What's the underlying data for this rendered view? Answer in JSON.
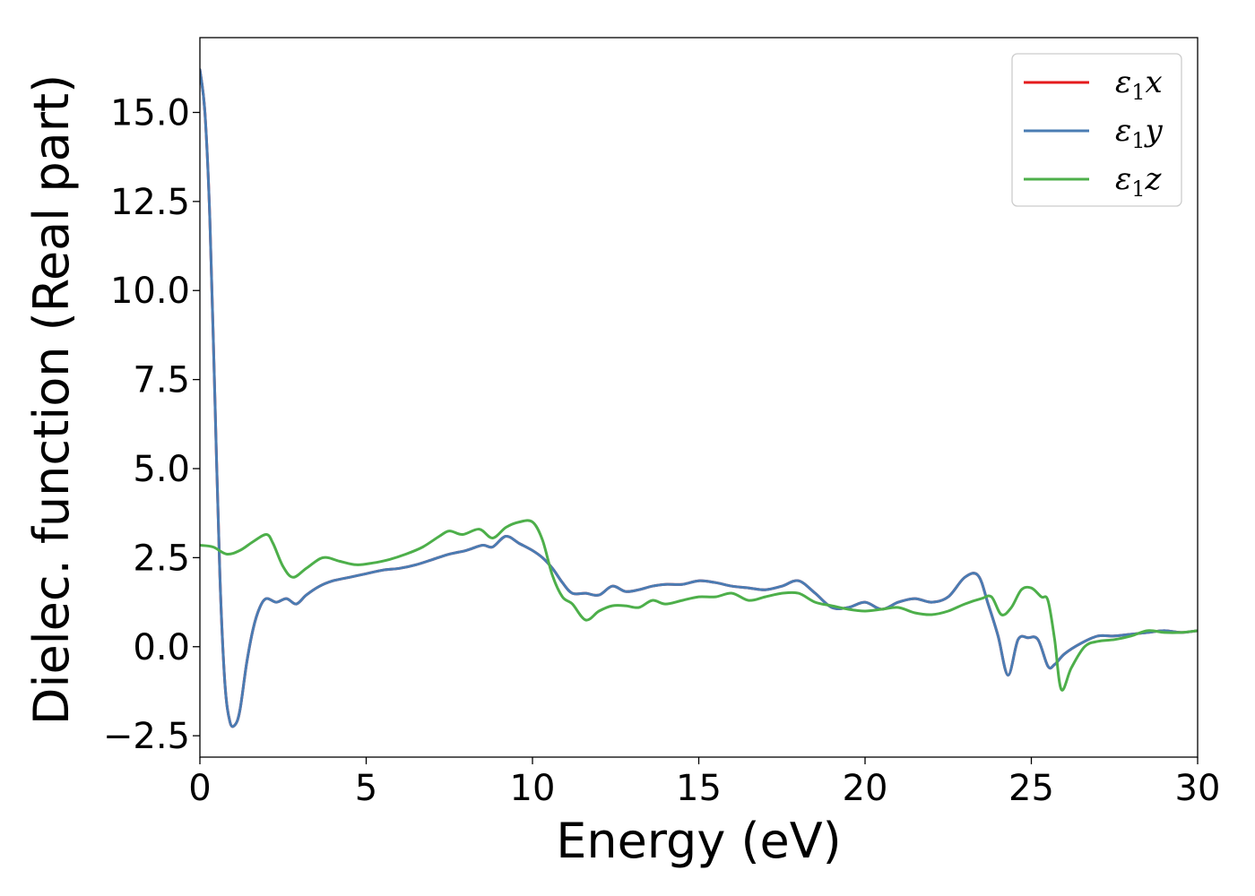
{
  "chart_data": {
    "type": "line",
    "title": "",
    "xlabel": "Energy (eV)",
    "ylabel": "Dielec. function (Real part)",
    "xlim": [
      0,
      30
    ],
    "ylim": [
      -3.1,
      17.1
    ],
    "xticks": [
      0,
      5,
      10,
      15,
      20,
      25,
      30
    ],
    "xtick_labels": [
      "0",
      "5",
      "10",
      "15",
      "20",
      "25",
      "30"
    ],
    "yticks": [
      -2.5,
      0.0,
      2.5,
      5.0,
      7.5,
      10.0,
      12.5,
      15.0
    ],
    "ytick_labels": [
      "−2.5",
      "0.0",
      "2.5",
      "5.0",
      "7.5",
      "10.0",
      "12.5",
      "15.0"
    ],
    "grid": false,
    "legend_position": "top-right",
    "series": [
      {
        "name": "ε1x",
        "symbol": "ε",
        "subscript": "1",
        "axis": "x",
        "color": "#e41a1c",
        "x": [
          0,
          0.15,
          0.3,
          0.45,
          0.6,
          0.75,
          0.9,
          1.05,
          1.2,
          1.4,
          1.6,
          1.8,
          2.0,
          2.3,
          2.6,
          2.9,
          3.2,
          3.6,
          4.0,
          4.5,
          5.0,
          5.5,
          6.0,
          6.5,
          7.0,
          7.5,
          8.0,
          8.5,
          8.8,
          9.2,
          9.6,
          10.0,
          10.3,
          10.6,
          10.9,
          11.2,
          11.6,
          12.0,
          12.4,
          12.8,
          13.2,
          13.6,
          14.0,
          14.5,
          15.0,
          15.5,
          16.0,
          16.5,
          17.0,
          17.5,
          18.0,
          18.5,
          19.0,
          19.5,
          20.0,
          20.5,
          21.0,
          21.5,
          22.0,
          22.5,
          23.0,
          23.4,
          23.7,
          24.0,
          24.3,
          24.6,
          24.9,
          25.2,
          25.5,
          25.7,
          26.0,
          26.5,
          27.0,
          27.5,
          28.0,
          28.5,
          29.0,
          29.5,
          30.0
        ],
        "y": [
          16.2,
          15.0,
          12.0,
          7.0,
          2.0,
          -1.0,
          -2.1,
          -2.2,
          -1.8,
          -0.5,
          0.5,
          1.1,
          1.35,
          1.25,
          1.35,
          1.2,
          1.45,
          1.7,
          1.85,
          1.95,
          2.05,
          2.15,
          2.2,
          2.3,
          2.45,
          2.6,
          2.7,
          2.85,
          2.8,
          3.1,
          2.9,
          2.7,
          2.5,
          2.2,
          1.8,
          1.5,
          1.5,
          1.45,
          1.7,
          1.55,
          1.6,
          1.7,
          1.75,
          1.75,
          1.85,
          1.8,
          1.7,
          1.65,
          1.6,
          1.7,
          1.85,
          1.5,
          1.1,
          1.1,
          1.25,
          1.05,
          1.25,
          1.35,
          1.25,
          1.4,
          1.95,
          2.0,
          1.2,
          0.3,
          -0.8,
          0.2,
          0.25,
          0.2,
          -0.55,
          -0.5,
          -0.2,
          0.1,
          0.3,
          0.3,
          0.35,
          0.4,
          0.45,
          0.4,
          0.45
        ]
      },
      {
        "name": "ε1y",
        "symbol": "ε",
        "subscript": "1",
        "axis": "y",
        "color": "#4a7cb3",
        "x": [
          0,
          0.15,
          0.3,
          0.45,
          0.6,
          0.75,
          0.9,
          1.05,
          1.2,
          1.4,
          1.6,
          1.8,
          2.0,
          2.3,
          2.6,
          2.9,
          3.2,
          3.6,
          4.0,
          4.5,
          5.0,
          5.5,
          6.0,
          6.5,
          7.0,
          7.5,
          8.0,
          8.5,
          8.8,
          9.2,
          9.6,
          10.0,
          10.3,
          10.6,
          10.9,
          11.2,
          11.6,
          12.0,
          12.4,
          12.8,
          13.2,
          13.6,
          14.0,
          14.5,
          15.0,
          15.5,
          16.0,
          16.5,
          17.0,
          17.5,
          18.0,
          18.5,
          19.0,
          19.5,
          20.0,
          20.5,
          21.0,
          21.5,
          22.0,
          22.5,
          23.0,
          23.4,
          23.7,
          24.0,
          24.3,
          24.6,
          24.9,
          25.2,
          25.5,
          25.7,
          26.0,
          26.5,
          27.0,
          27.5,
          28.0,
          28.5,
          29.0,
          29.5,
          30.0
        ],
        "y": [
          16.2,
          15.0,
          12.0,
          7.0,
          2.0,
          -1.0,
          -2.1,
          -2.2,
          -1.8,
          -0.5,
          0.5,
          1.1,
          1.35,
          1.25,
          1.35,
          1.2,
          1.45,
          1.7,
          1.85,
          1.95,
          2.05,
          2.15,
          2.2,
          2.3,
          2.45,
          2.6,
          2.7,
          2.85,
          2.8,
          3.1,
          2.9,
          2.7,
          2.5,
          2.2,
          1.8,
          1.5,
          1.5,
          1.45,
          1.7,
          1.55,
          1.6,
          1.7,
          1.75,
          1.75,
          1.85,
          1.8,
          1.7,
          1.65,
          1.6,
          1.7,
          1.85,
          1.5,
          1.1,
          1.1,
          1.25,
          1.05,
          1.25,
          1.35,
          1.25,
          1.4,
          1.95,
          2.0,
          1.2,
          0.3,
          -0.8,
          0.2,
          0.25,
          0.2,
          -0.55,
          -0.5,
          -0.2,
          0.1,
          0.3,
          0.3,
          0.35,
          0.4,
          0.45,
          0.4,
          0.45
        ]
      },
      {
        "name": "ε1z",
        "symbol": "ε",
        "subscript": "1",
        "axis": "z",
        "color": "#4daf4a",
        "x": [
          0,
          0.4,
          0.8,
          1.2,
          1.6,
          2.0,
          2.2,
          2.5,
          2.8,
          3.2,
          3.7,
          4.2,
          4.7,
          5.2,
          5.7,
          6.2,
          6.7,
          7.2,
          7.5,
          7.9,
          8.4,
          8.8,
          9.2,
          9.6,
          10.0,
          10.3,
          10.6,
          10.9,
          11.2,
          11.6,
          12.0,
          12.4,
          12.8,
          13.2,
          13.6,
          14.0,
          14.5,
          15.0,
          15.5,
          16.0,
          16.5,
          17.0,
          17.5,
          18.0,
          18.5,
          19.0,
          19.5,
          20.0,
          20.5,
          21.0,
          21.5,
          22.0,
          22.5,
          23.0,
          23.5,
          23.8,
          24.1,
          24.4,
          24.7,
          25.0,
          25.3,
          25.5,
          25.7,
          25.9,
          26.2,
          26.6,
          27.0,
          27.5,
          28.0,
          28.5,
          29.0,
          29.5,
          30.0
        ],
        "y": [
          2.85,
          2.8,
          2.6,
          2.7,
          2.95,
          3.15,
          2.9,
          2.25,
          1.95,
          2.2,
          2.5,
          2.4,
          2.3,
          2.35,
          2.45,
          2.6,
          2.8,
          3.1,
          3.25,
          3.15,
          3.3,
          3.05,
          3.35,
          3.5,
          3.5,
          3.0,
          2.0,
          1.4,
          1.2,
          0.75,
          1.0,
          1.15,
          1.15,
          1.1,
          1.3,
          1.2,
          1.3,
          1.4,
          1.4,
          1.5,
          1.3,
          1.4,
          1.5,
          1.5,
          1.25,
          1.15,
          1.05,
          1.0,
          1.05,
          1.1,
          0.95,
          0.9,
          1.0,
          1.2,
          1.35,
          1.4,
          0.9,
          1.1,
          1.6,
          1.65,
          1.4,
          1.3,
          0.2,
          -1.2,
          -0.6,
          0.0,
          0.15,
          0.2,
          0.3,
          0.45,
          0.4,
          0.4,
          0.45
        ]
      }
    ]
  }
}
